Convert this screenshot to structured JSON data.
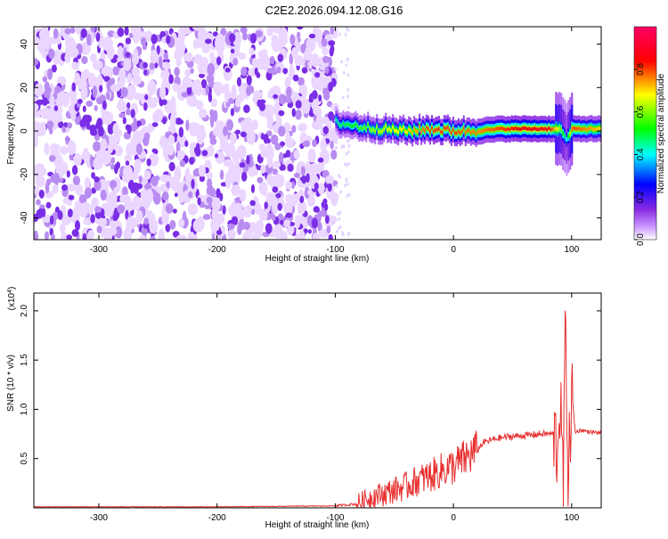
{
  "title": "C2E2.2026.094.12.08.G16",
  "chart_data": [
    {
      "type": "heatmap",
      "xlabel": "Height of straight line (km)",
      "ylabel": "Frequency (Hz)",
      "xlim": [
        -355,
        125
      ],
      "ylim": [
        -50,
        48
      ],
      "xticks": [
        -300,
        -200,
        -100,
        0,
        100
      ],
      "yticks": [
        -40,
        -20,
        0,
        20,
        40
      ],
      "xtick_labels": [
        "-300",
        "-200",
        "-100",
        "0",
        "100"
      ],
      "ytick_labels": [
        "-40",
        "-20",
        "0",
        "20",
        "40"
      ],
      "colorbar": {
        "label": "Normalized spectral amplitude",
        "range": [
          0.0,
          1.0
        ],
        "ticks": [
          0.0,
          0.2,
          0.4,
          0.6,
          0.8
        ],
        "tick_labels": [
          "0.0",
          "0.2",
          "0.4",
          "0.6",
          "0.8"
        ]
      },
      "noise_region_x": [
        -355,
        -100
      ],
      "signal_band": {
        "x": [
          -100,
          -80,
          -60,
          -40,
          -20,
          0,
          20,
          40,
          60,
          80,
          90,
          95,
          100,
          125
        ],
        "center_hz": [
          4,
          2,
          1,
          0,
          1,
          0,
          0,
          1,
          1,
          1,
          1,
          -4,
          1,
          1
        ],
        "peak_amplitude": [
          0.45,
          0.55,
          0.65,
          0.7,
          0.8,
          0.8,
          0.75,
          0.8,
          0.85,
          0.85,
          0.6,
          0.4,
          0.8,
          0.7
        ]
      },
      "colors": [
        "#ffffff",
        "#ff00ff",
        "#7f00ff",
        "#0000ff",
        "#00ffff",
        "#00ff00",
        "#ffff00",
        "#ff0000"
      ]
    },
    {
      "type": "line",
      "xlabel": "Height of straight line (km)",
      "ylabel": "SNR (10 * v/v)",
      "scale_label_prefix": "(x10",
      "scale_label_exp": "4",
      "scale_label_suffix": ")",
      "xlim": [
        -355,
        125
      ],
      "ylim": [
        0,
        2.18
      ],
      "xticks": [
        -300,
        -200,
        -100,
        0,
        100
      ],
      "yticks": [
        0.5,
        1.0,
        1.5,
        2.0
      ],
      "xtick_labels": [
        "-300",
        "-200",
        "-100",
        "0",
        "100"
      ],
      "ytick_labels": [
        "0.5",
        "1.0",
        "1.5",
        "2.0"
      ],
      "series": [
        {
          "color": "#e83030",
          "x": [
            -355,
            -300,
            -200,
            -100,
            -82,
            -75,
            -68,
            -60,
            -50,
            -40,
            -30,
            -20,
            -10,
            0,
            10,
            20,
            25,
            35,
            45,
            55,
            65,
            75,
            85,
            88,
            90,
            93,
            95,
            97,
            100,
            103,
            108,
            115,
            125
          ],
          "y": [
            0.01,
            0.01,
            0.01,
            0.02,
            0.04,
            0.08,
            0.12,
            0.14,
            0.18,
            0.22,
            0.28,
            0.32,
            0.38,
            0.42,
            0.5,
            0.58,
            0.66,
            0.7,
            0.72,
            0.73,
            0.74,
            0.75,
            0.75,
            0.6,
            1.1,
            0.3,
            2.0,
            0.2,
            1.2,
            0.77,
            0.79,
            0.77,
            0.76
          ]
        }
      ]
    }
  ]
}
